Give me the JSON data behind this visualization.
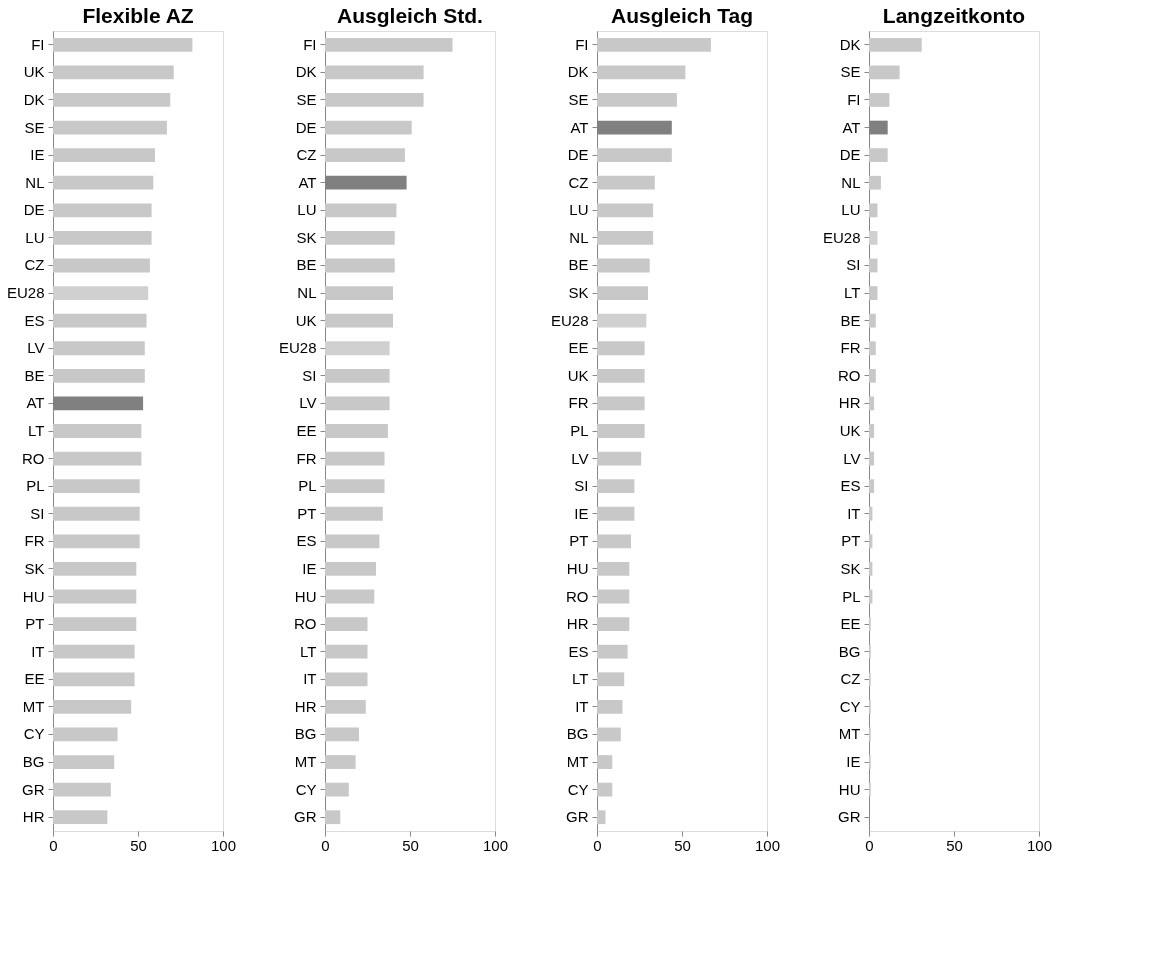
{
  "chart_data": [
    {
      "type": "bar",
      "orientation": "horizontal",
      "title": "Flexible AZ",
      "categories": [
        "FI",
        "UK",
        "DK",
        "SE",
        "IE",
        "NL",
        "DE",
        "LU",
        "CZ",
        "EU28",
        "ES",
        "LV",
        "BE",
        "AT",
        "LT",
        "RO",
        "PL",
        "SI",
        "FR",
        "SK",
        "HU",
        "PT",
        "IT",
        "EE",
        "MT",
        "CY",
        "BG",
        "GR",
        "HR"
      ],
      "values": [
        82,
        71,
        69,
        67,
        60,
        59,
        58,
        58,
        57,
        56,
        55,
        54,
        54,
        53,
        52,
        52,
        51,
        51,
        51,
        49,
        49,
        49,
        48,
        48,
        46,
        38,
        36,
        34,
        32
      ],
      "colors": [
        "#c8c8c8",
        "#c8c8c8",
        "#c8c8c8",
        "#c8c8c8",
        "#c8c8c8",
        "#c8c8c8",
        "#c8c8c8",
        "#c8c8c8",
        "#c8c8c8",
        "#d0d0d0",
        "#c8c8c8",
        "#c8c8c8",
        "#c8c8c8",
        "#808080",
        "#c8c8c8",
        "#c8c8c8",
        "#c8c8c8",
        "#c8c8c8",
        "#c8c8c8",
        "#c8c8c8",
        "#c8c8c8",
        "#c8c8c8",
        "#c8c8c8",
        "#c8c8c8",
        "#c8c8c8",
        "#c8c8c8",
        "#c8c8c8",
        "#c8c8c8",
        "#c8c8c8"
      ],
      "xlim": [
        0,
        100
      ],
      "xticks": [
        0,
        50,
        100
      ],
      "grid": false
    },
    {
      "type": "bar",
      "orientation": "horizontal",
      "title": "Ausgleich Std.",
      "categories": [
        "FI",
        "DK",
        "SE",
        "DE",
        "CZ",
        "AT",
        "LU",
        "SK",
        "BE",
        "NL",
        "UK",
        "EU28",
        "SI",
        "LV",
        "EE",
        "FR",
        "PL",
        "PT",
        "ES",
        "IE",
        "HU",
        "RO",
        "LT",
        "IT",
        "HR",
        "BG",
        "MT",
        "CY",
        "GR"
      ],
      "values": [
        75,
        58,
        58,
        51,
        47,
        48,
        42,
        41,
        41,
        40,
        40,
        38,
        38,
        38,
        37,
        35,
        35,
        34,
        32,
        30,
        29,
        25,
        25,
        25,
        24,
        20,
        18,
        14,
        9
      ],
      "colors": [
        "#c8c8c8",
        "#c8c8c8",
        "#c8c8c8",
        "#c8c8c8",
        "#c8c8c8",
        "#808080",
        "#c8c8c8",
        "#c8c8c8",
        "#c8c8c8",
        "#c8c8c8",
        "#c8c8c8",
        "#d0d0d0",
        "#c8c8c8",
        "#c8c8c8",
        "#c8c8c8",
        "#c8c8c8",
        "#c8c8c8",
        "#c8c8c8",
        "#c8c8c8",
        "#c8c8c8",
        "#c8c8c8",
        "#c8c8c8",
        "#c8c8c8",
        "#c8c8c8",
        "#c8c8c8",
        "#c8c8c8",
        "#c8c8c8",
        "#c8c8c8",
        "#c8c8c8"
      ],
      "xlim": [
        0,
        100
      ],
      "xticks": [
        0,
        50,
        100
      ],
      "grid": false
    },
    {
      "type": "bar",
      "orientation": "horizontal",
      "title": "Ausgleich Tag",
      "categories": [
        "FI",
        "DK",
        "SE",
        "AT",
        "DE",
        "CZ",
        "LU",
        "NL",
        "BE",
        "SK",
        "EU28",
        "EE",
        "UK",
        "FR",
        "PL",
        "LV",
        "SI",
        "IE",
        "PT",
        "HU",
        "RO",
        "HR",
        "ES",
        "LT",
        "IT",
        "BG",
        "MT",
        "CY",
        "GR"
      ],
      "values": [
        67,
        52,
        47,
        44,
        44,
        34,
        33,
        33,
        31,
        30,
        29,
        28,
        28,
        28,
        28,
        26,
        22,
        22,
        20,
        19,
        19,
        19,
        18,
        16,
        15,
        14,
        9,
        9,
        5
      ],
      "colors": [
        "#c8c8c8",
        "#c8c8c8",
        "#c8c8c8",
        "#808080",
        "#c8c8c8",
        "#c8c8c8",
        "#c8c8c8",
        "#c8c8c8",
        "#c8c8c8",
        "#c8c8c8",
        "#d0d0d0",
        "#c8c8c8",
        "#c8c8c8",
        "#c8c8c8",
        "#c8c8c8",
        "#c8c8c8",
        "#c8c8c8",
        "#c8c8c8",
        "#c8c8c8",
        "#c8c8c8",
        "#c8c8c8",
        "#c8c8c8",
        "#c8c8c8",
        "#c8c8c8",
        "#c8c8c8",
        "#c8c8c8",
        "#c8c8c8",
        "#c8c8c8",
        "#c8c8c8"
      ],
      "xlim": [
        0,
        100
      ],
      "xticks": [
        0,
        50,
        100
      ],
      "grid": false
    },
    {
      "type": "bar",
      "orientation": "horizontal",
      "title": "Langzeitkonto",
      "categories": [
        "DK",
        "SE",
        "FI",
        "AT",
        "DE",
        "NL",
        "LU",
        "EU28",
        "SI",
        "LT",
        "BE",
        "FR",
        "RO",
        "HR",
        "UK",
        "LV",
        "ES",
        "IT",
        "PT",
        "SK",
        "PL",
        "EE",
        "BG",
        "CZ",
        "CY",
        "MT",
        "IE",
        "HU",
        "GR"
      ],
      "values": [
        31,
        18,
        12,
        11,
        11,
        7,
        5,
        5,
        5,
        5,
        4,
        4,
        4,
        3,
        3,
        3,
        3,
        2,
        2,
        2,
        2,
        1,
        1,
        1,
        1,
        1,
        1,
        1,
        0
      ],
      "colors": [
        "#c8c8c8",
        "#c8c8c8",
        "#c8c8c8",
        "#808080",
        "#c8c8c8",
        "#c8c8c8",
        "#c8c8c8",
        "#d0d0d0",
        "#c8c8c8",
        "#c8c8c8",
        "#c8c8c8",
        "#c8c8c8",
        "#c8c8c8",
        "#c8c8c8",
        "#c8c8c8",
        "#c8c8c8",
        "#c8c8c8",
        "#c8c8c8",
        "#c8c8c8",
        "#c8c8c8",
        "#c8c8c8",
        "#c8c8c8",
        "#c8c8c8",
        "#c8c8c8",
        "#c8c8c8",
        "#c8c8c8",
        "#c8c8c8",
        "#c8c8c8",
        "#c8c8c8"
      ],
      "xlim": [
        0,
        100
      ],
      "xticks": [
        0,
        50,
        100
      ],
      "grid": false
    }
  ]
}
